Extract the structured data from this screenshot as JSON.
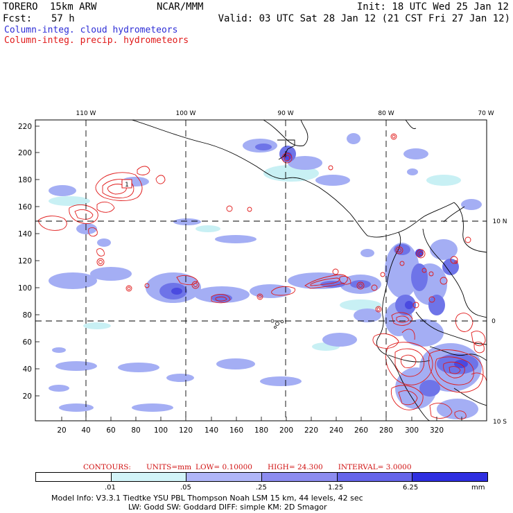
{
  "header": {
    "model": "TORERO",
    "resolution": "15km ARW",
    "center": "NCAR/MMM",
    "init": "Init: 18 UTC Wed 25 Jan 12",
    "fcst_label": "Fcst:",
    "fcst_value": "57 h",
    "valid": "Valid: 03 UTC Sat 28 Jan 12 (21 CST Fri 27 Jan 12)",
    "field_cloud": "Column-integ. cloud hydrometeors",
    "field_precip": "Column-integ. precip. hydrometeors"
  },
  "map": {
    "lon_labels": [
      "110 W",
      "100 W",
      "90 W",
      "80 W",
      "70 W"
    ],
    "lat_labels": [
      "10 N",
      "0",
      "10 S"
    ],
    "y_ticks": [
      "220",
      "200",
      "180",
      "160",
      "140",
      "120",
      "100",
      "80",
      "60",
      "40",
      "20"
    ],
    "x_ticks": [
      "20",
      "40",
      "60",
      "80",
      "100",
      "120",
      "140",
      "160",
      "180",
      "200",
      "220",
      "240",
      "260",
      "280",
      "300",
      "320"
    ],
    "highlight_label": "1",
    "colors": {
      "cloud_light": "#c8f0f4",
      "cloud_mid": "#a4aef4",
      "cloud_dark": "#6e74e8",
      "cloud_deep": "#4a4ae0",
      "precip_contour": "#e01818"
    }
  },
  "contours": {
    "label": "CONTOURS:",
    "units": "UNITS=mm",
    "low": "LOW= 0.10000",
    "high": "HIGH= 24.300",
    "interval": "INTERVAL= 3.0000"
  },
  "legend": {
    "thresholds": [
      ".01",
      ".05",
      ".25",
      "1.25",
      "6.25"
    ],
    "units": "mm",
    "colors": [
      "#ffffff",
      "#d2f4f8",
      "#b0b6f8",
      "#8c8cf0",
      "#6464ea",
      "#2e2ee0"
    ]
  },
  "footer": {
    "line1": "Model Info: V3.3.1    Tiedtke YSU PBL   Thompson    Noah LSM  15 km,   44 levels,   42 sec",
    "line2": "LW: Godd SW: Goddard DIFF: simple KM: 2D Smagor"
  }
}
